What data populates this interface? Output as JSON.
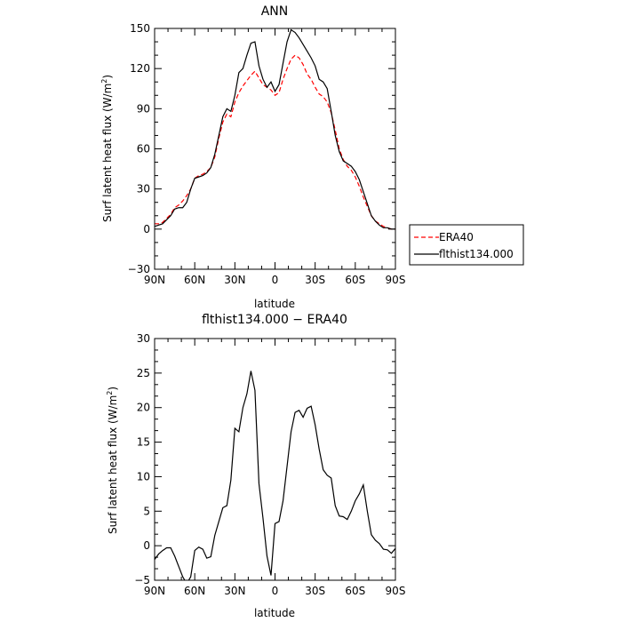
{
  "chart_data": [
    {
      "type": "line",
      "title": "ANN",
      "xlabel": "latitude",
      "ylabel": "Surf latent heat flux (W/m^2)",
      "ylabel_main": "Surf latent heat flux (W/m",
      "ylabel_sup": "2",
      "ylabel_tail": ")",
      "xlim": [
        90,
        -90
      ],
      "ylim": [
        -30,
        150
      ],
      "xticks": [
        90,
        60,
        30,
        0,
        -30,
        -60,
        -90
      ],
      "xtick_labels": [
        "90N",
        "60N",
        "30N",
        "0",
        "30S",
        "60S",
        "90S"
      ],
      "yticks": [
        -30,
        0,
        30,
        60,
        90,
        120,
        150
      ],
      "ytick_labels": [
        "−30",
        "0",
        "30",
        "60",
        "90",
        "120",
        "150"
      ],
      "legend": {
        "placement": "right-bottom",
        "entries": [
          "ERA40",
          "flthist134.000"
        ]
      },
      "series": [
        {
          "name": "ERA40",
          "color": "#ff0000",
          "dash": "dashed",
          "x": [
            90,
            87,
            84,
            81,
            78,
            75,
            72,
            69,
            66,
            63,
            60,
            57,
            54,
            51,
            48,
            45,
            42,
            39,
            36,
            33,
            30,
            27,
            24,
            21,
            18,
            15,
            12,
            9,
            6,
            3,
            0,
            -3,
            -6,
            -9,
            -12,
            -15,
            -18,
            -21,
            -24,
            -27,
            -30,
            -33,
            -36,
            -39,
            -42,
            -45,
            -48,
            -51,
            -54,
            -57,
            -60,
            -63,
            -66,
            -69,
            -72,
            -75,
            -78,
            -81,
            -84,
            -87,
            -90
          ],
          "y": [
            4,
            4,
            5,
            8,
            11,
            16,
            18,
            21,
            25,
            30,
            38,
            40,
            41,
            43,
            46,
            54,
            68,
            80,
            86,
            84,
            95,
            102,
            107,
            111,
            115,
            118,
            113,
            108,
            106,
            104,
            100,
            102,
            112,
            120,
            127,
            130,
            128,
            123,
            116,
            112,
            106,
            101,
            99,
            95,
            87,
            74,
            60,
            52,
            47,
            44,
            39,
            32,
            24,
            17,
            10,
            6,
            4,
            2,
            1,
            0,
            0
          ]
        },
        {
          "name": "flthist134.000",
          "color": "#000000",
          "dash": "solid",
          "x": [
            90,
            87,
            84,
            81,
            78,
            75,
            72,
            69,
            66,
            63,
            60,
            57,
            54,
            51,
            48,
            45,
            42,
            39,
            36,
            33,
            30,
            27,
            24,
            21,
            18,
            15,
            12,
            9,
            6,
            3,
            0,
            -3,
            -6,
            -9,
            -12,
            -15,
            -18,
            -21,
            -24,
            -27,
            -30,
            -33,
            -36,
            -39,
            -42,
            -45,
            -48,
            -51,
            -54,
            -57,
            -60,
            -63,
            -66,
            -69,
            -72,
            -75,
            -78,
            -81,
            -84,
            -87,
            -90
          ],
          "y": [
            2,
            3,
            4,
            7,
            10,
            15,
            16,
            16,
            20,
            30,
            38,
            39,
            40,
            42,
            46,
            56,
            70,
            84,
            90,
            88,
            100,
            117,
            120,
            130,
            139,
            140,
            122,
            112,
            106,
            110,
            103,
            108,
            124,
            140,
            149,
            147,
            143,
            138,
            133,
            128,
            122,
            112,
            110,
            105,
            88,
            70,
            58,
            51,
            49,
            47,
            43,
            37,
            28,
            19,
            10,
            6,
            3,
            1,
            1,
            0,
            0
          ]
        }
      ]
    },
    {
      "type": "line",
      "title": "flthist134.000 − ERA40",
      "xlabel": "latitude",
      "ylabel": "Surf latent heat flux (W/m^2)",
      "ylabel_main": "Surf latent heat flux (W/m",
      "ylabel_sup": "2",
      "ylabel_tail": ")",
      "xlim": [
        90,
        -90
      ],
      "ylim": [
        -5,
        30
      ],
      "xticks": [
        90,
        60,
        30,
        0,
        -30,
        -60,
        -90
      ],
      "xtick_labels": [
        "90N",
        "60N",
        "30N",
        "0",
        "30S",
        "60S",
        "90S"
      ],
      "yticks": [
        -5,
        0,
        5,
        10,
        15,
        20,
        25,
        30
      ],
      "ytick_labels": [
        "−5",
        "0",
        "5",
        "10",
        "15",
        "20",
        "25",
        "30"
      ],
      "series": [
        {
          "name": "",
          "color": "#000000",
          "dash": "solid",
          "x": [
            90,
            87,
            84,
            81,
            78,
            75,
            72,
            69,
            66,
            63,
            60,
            57,
            54,
            51,
            48,
            45,
            42,
            39,
            36,
            33,
            30,
            27,
            24,
            21,
            18,
            15,
            12,
            9,
            6,
            3,
            0,
            -3,
            -6,
            -9,
            -12,
            -15,
            -18,
            -21,
            -24,
            -27,
            -30,
            -33,
            -36,
            -39,
            -42,
            -45,
            -48,
            -51,
            -54,
            -57,
            -60,
            -63,
            -66,
            -69,
            -72,
            -75,
            -78,
            -81,
            -84,
            -87,
            -90
          ],
          "y": [
            -2,
            -1.2,
            -0.7,
            -0.3,
            -0.3,
            -1.5,
            -3.0,
            -4.5,
            -5.5,
            -4.5,
            -0.7,
            -0.2,
            -0.5,
            -1.8,
            -1.6,
            1.5,
            3.5,
            5.5,
            5.8,
            9.5,
            17,
            16.5,
            20,
            22,
            25.3,
            22.5,
            9,
            4,
            -1.5,
            -4.3,
            3.2,
            3.5,
            6.5,
            11.5,
            16.5,
            19.3,
            19.6,
            18.6,
            19.9,
            20.2,
            17.5,
            14,
            11,
            10.2,
            9.8,
            5.8,
            4.3,
            4.2,
            3.8,
            5.0,
            6.5,
            7.5,
            8.8,
            5.0,
            1.6,
            0.8,
            0.3,
            -0.5,
            -0.6,
            -1.1,
            -0.4
          ]
        }
      ]
    }
  ]
}
